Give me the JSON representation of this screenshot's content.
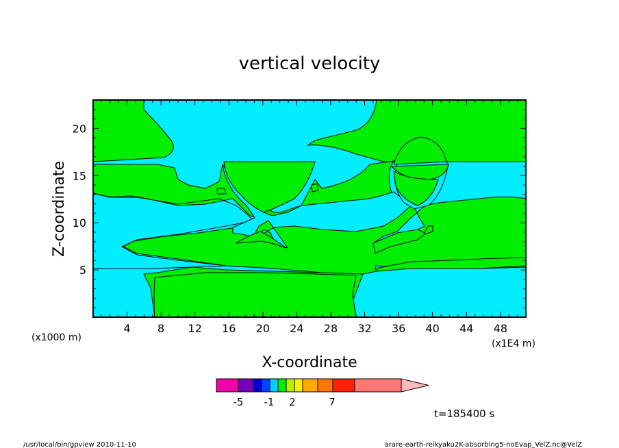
{
  "chart_data": {
    "type": "heatmap",
    "title": "vertical velocity",
    "xlabel": "X-coordinate",
    "ylabel": "Z-coordinate",
    "x_unit_label": "(x1E4 m)",
    "y_unit_label": "(x1000 m)",
    "xlim": [
      0,
      51
    ],
    "ylim": [
      0,
      23
    ],
    "x_ticks": [
      "4",
      "8",
      "12",
      "16",
      "20",
      "24",
      "28",
      "32",
      "36",
      "40",
      "44",
      "48"
    ],
    "y_ticks": [
      "5",
      "10",
      "15",
      "20"
    ],
    "fill_colors": {
      "negative": "#00eeff",
      "positive": "#00ee00"
    },
    "colorbar": {
      "colors": [
        "#ee00aa",
        "#7700bb",
        "#0000cc",
        "#0044ff",
        "#00ccff",
        "#00ee00",
        "#bbee00",
        "#ffee00",
        "#ffaa00",
        "#ff7700",
        "#ff2200",
        "#ff7777",
        "#ffbbbb"
      ],
      "labels": [
        "-5",
        "-1",
        "2",
        "7"
      ]
    },
    "time_label": "t=185400 s"
  },
  "footer": {
    "left": "/usr/local/bin/gpview  2010-11-10",
    "right": "arare-earth-reikyaku2K-absorbing5-noEvap_VelZ.nc@VelZ"
  }
}
